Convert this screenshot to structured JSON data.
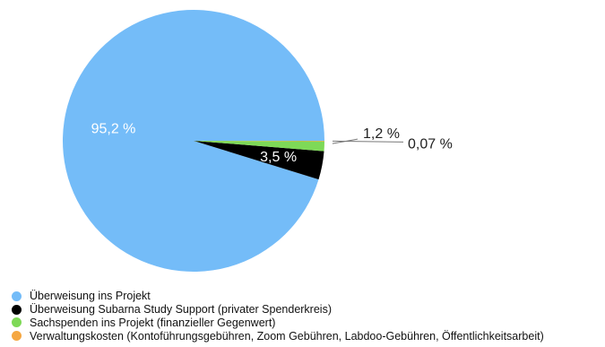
{
  "chart_data": {
    "type": "pie",
    "title": "",
    "slices": [
      {
        "label": "Überweisung ins Projekt",
        "value": 95.2,
        "display": "95,2 %",
        "color": "#74bcf8"
      },
      {
        "label": "Überweisung Subarna Study Support (privater Spenderkreis)",
        "value": 3.5,
        "display": "3,5 %",
        "color": "#000000"
      },
      {
        "label": "Sachspenden ins Projekt (finanzieller Gegenwert)",
        "value": 1.2,
        "display": "1,2 %",
        "color": "#7ed957"
      },
      {
        "label": "Verwaltungskosten (Kontoführungsgebühren, Zoom Gebühren, Labdoo-Gebühren, Öffentlichkeitsarbeit)",
        "value": 0.07,
        "display": "0,07 %",
        "color": "#f5a742"
      }
    ],
    "legend": {
      "position": "bottom-left"
    }
  }
}
